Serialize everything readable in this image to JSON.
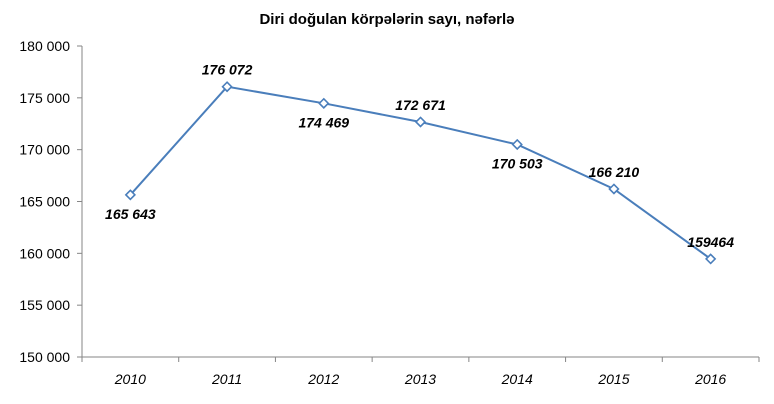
{
  "chart_data": {
    "type": "line",
    "title": "Diri doğulan körpələrin sayı, nəfərlə",
    "xlabel": "",
    "ylabel": "",
    "categories": [
      "2010",
      "2011",
      "2012",
      "2013",
      "2014",
      "2015",
      "2016"
    ],
    "series": [
      {
        "values": [
          165643,
          176072,
          174469,
          172671,
          170503,
          166210,
          159464
        ],
        "data_labels": [
          "165 643",
          "176 072",
          "174 469",
          "172 671",
          "170 503",
          "166 210",
          "159464"
        ],
        "color": "#4a7ebb",
        "marker": "diamond"
      }
    ],
    "ylim": [
      150000,
      180000
    ],
    "yticks": [
      150000,
      155000,
      160000,
      165000,
      170000,
      175000,
      180000
    ],
    "ytick_labels": [
      "150 000",
      "155 000",
      "160 000",
      "165 000",
      "170 000",
      "175 000",
      "180 000"
    ],
    "grid": false,
    "legend": "none"
  }
}
